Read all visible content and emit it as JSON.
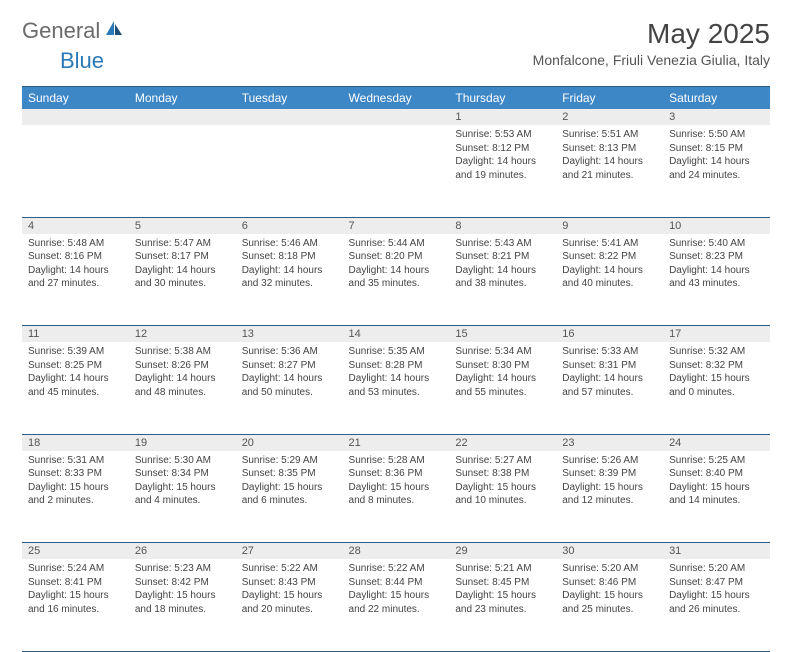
{
  "logo": {
    "general": "General",
    "blue": "Blue"
  },
  "title": "May 2025",
  "location": "Monfalcone, Friuli Venezia Giulia, Italy",
  "colors": {
    "header_bg": "#3d87c7",
    "header_text": "#ffffff",
    "daynum_bg": "#ededed",
    "rule": "#2a5d8a",
    "body_text": "#444444",
    "logo_gray": "#6b6b6b",
    "logo_blue": "#2a7ab8"
  },
  "typography": {
    "title_fontsize": 28,
    "location_fontsize": 14,
    "header_fontsize": 12,
    "daynum_fontsize": 11,
    "cell_fontsize": 10
  },
  "weekdays": [
    "Sunday",
    "Monday",
    "Tuesday",
    "Wednesday",
    "Thursday",
    "Friday",
    "Saturday"
  ],
  "weeks": [
    [
      null,
      null,
      null,
      null,
      {
        "n": "1",
        "sr": "5:53 AM",
        "ss": "8:12 PM",
        "dl": "14 hours and 19 minutes."
      },
      {
        "n": "2",
        "sr": "5:51 AM",
        "ss": "8:13 PM",
        "dl": "14 hours and 21 minutes."
      },
      {
        "n": "3",
        "sr": "5:50 AM",
        "ss": "8:15 PM",
        "dl": "14 hours and 24 minutes."
      }
    ],
    [
      {
        "n": "4",
        "sr": "5:48 AM",
        "ss": "8:16 PM",
        "dl": "14 hours and 27 minutes."
      },
      {
        "n": "5",
        "sr": "5:47 AM",
        "ss": "8:17 PM",
        "dl": "14 hours and 30 minutes."
      },
      {
        "n": "6",
        "sr": "5:46 AM",
        "ss": "8:18 PM",
        "dl": "14 hours and 32 minutes."
      },
      {
        "n": "7",
        "sr": "5:44 AM",
        "ss": "8:20 PM",
        "dl": "14 hours and 35 minutes."
      },
      {
        "n": "8",
        "sr": "5:43 AM",
        "ss": "8:21 PM",
        "dl": "14 hours and 38 minutes."
      },
      {
        "n": "9",
        "sr": "5:41 AM",
        "ss": "8:22 PM",
        "dl": "14 hours and 40 minutes."
      },
      {
        "n": "10",
        "sr": "5:40 AM",
        "ss": "8:23 PM",
        "dl": "14 hours and 43 minutes."
      }
    ],
    [
      {
        "n": "11",
        "sr": "5:39 AM",
        "ss": "8:25 PM",
        "dl": "14 hours and 45 minutes."
      },
      {
        "n": "12",
        "sr": "5:38 AM",
        "ss": "8:26 PM",
        "dl": "14 hours and 48 minutes."
      },
      {
        "n": "13",
        "sr": "5:36 AM",
        "ss": "8:27 PM",
        "dl": "14 hours and 50 minutes."
      },
      {
        "n": "14",
        "sr": "5:35 AM",
        "ss": "8:28 PM",
        "dl": "14 hours and 53 minutes."
      },
      {
        "n": "15",
        "sr": "5:34 AM",
        "ss": "8:30 PM",
        "dl": "14 hours and 55 minutes."
      },
      {
        "n": "16",
        "sr": "5:33 AM",
        "ss": "8:31 PM",
        "dl": "14 hours and 57 minutes."
      },
      {
        "n": "17",
        "sr": "5:32 AM",
        "ss": "8:32 PM",
        "dl": "15 hours and 0 minutes."
      }
    ],
    [
      {
        "n": "18",
        "sr": "5:31 AM",
        "ss": "8:33 PM",
        "dl": "15 hours and 2 minutes."
      },
      {
        "n": "19",
        "sr": "5:30 AM",
        "ss": "8:34 PM",
        "dl": "15 hours and 4 minutes."
      },
      {
        "n": "20",
        "sr": "5:29 AM",
        "ss": "8:35 PM",
        "dl": "15 hours and 6 minutes."
      },
      {
        "n": "21",
        "sr": "5:28 AM",
        "ss": "8:36 PM",
        "dl": "15 hours and 8 minutes."
      },
      {
        "n": "22",
        "sr": "5:27 AM",
        "ss": "8:38 PM",
        "dl": "15 hours and 10 minutes."
      },
      {
        "n": "23",
        "sr": "5:26 AM",
        "ss": "8:39 PM",
        "dl": "15 hours and 12 minutes."
      },
      {
        "n": "24",
        "sr": "5:25 AM",
        "ss": "8:40 PM",
        "dl": "15 hours and 14 minutes."
      }
    ],
    [
      {
        "n": "25",
        "sr": "5:24 AM",
        "ss": "8:41 PM",
        "dl": "15 hours and 16 minutes."
      },
      {
        "n": "26",
        "sr": "5:23 AM",
        "ss": "8:42 PM",
        "dl": "15 hours and 18 minutes."
      },
      {
        "n": "27",
        "sr": "5:22 AM",
        "ss": "8:43 PM",
        "dl": "15 hours and 20 minutes."
      },
      {
        "n": "28",
        "sr": "5:22 AM",
        "ss": "8:44 PM",
        "dl": "15 hours and 22 minutes."
      },
      {
        "n": "29",
        "sr": "5:21 AM",
        "ss": "8:45 PM",
        "dl": "15 hours and 23 minutes."
      },
      {
        "n": "30",
        "sr": "5:20 AM",
        "ss": "8:46 PM",
        "dl": "15 hours and 25 minutes."
      },
      {
        "n": "31",
        "sr": "5:20 AM",
        "ss": "8:47 PM",
        "dl": "15 hours and 26 minutes."
      }
    ]
  ],
  "labels": {
    "sunrise": "Sunrise:",
    "sunset": "Sunset:",
    "daylight": "Daylight:"
  }
}
